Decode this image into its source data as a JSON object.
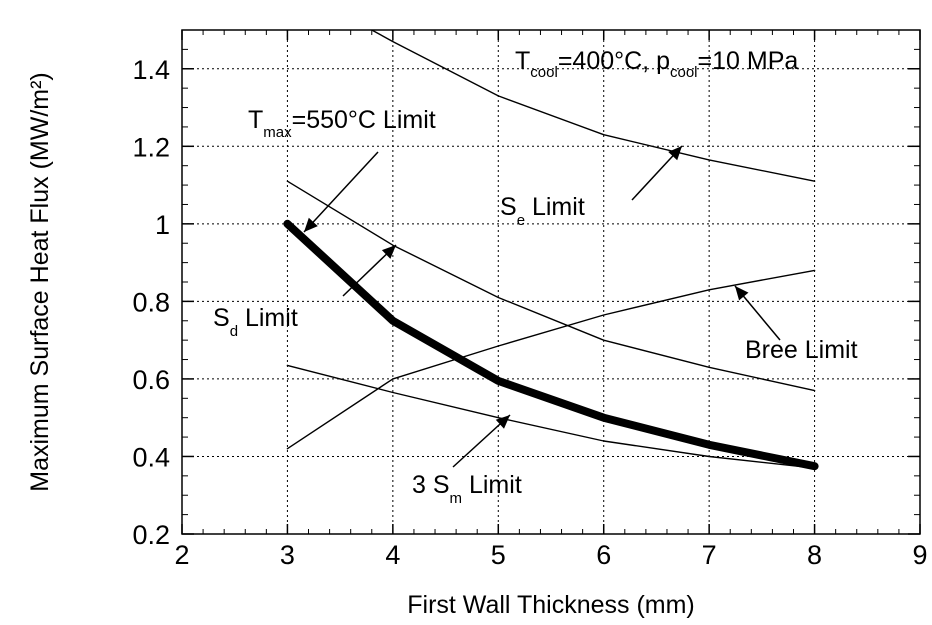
{
  "chart_data": {
    "type": "line",
    "xlabel": "First Wall Thickness (mm)",
    "ylabel": "Maximum Surface Heat Flux (MW/m²)",
    "xlim": [
      2,
      9
    ],
    "ylim": [
      0.2,
      1.5
    ],
    "x_ticks": [
      "2",
      "3",
      "4",
      "5",
      "6",
      "7",
      "8",
      "9"
    ],
    "y_ticks": [
      "0.2",
      "0.4",
      "0.6",
      "0.8",
      "1",
      "1.2",
      "1.4"
    ],
    "grid": true,
    "condition_label": {
      "t_main": "T",
      "t_sub": "cool",
      "t_rest": "=400°C, p",
      "p_sub": "cool",
      "p_rest": "=10 MPa"
    },
    "series": [
      {
        "name": "T max = 550°C Limit",
        "bold": true,
        "x": [
          3,
          4,
          5,
          6,
          7,
          8
        ],
        "y": [
          1.0,
          0.75,
          0.595,
          0.5,
          0.43,
          0.375
        ]
      },
      {
        "name": "S e Limit",
        "x": [
          3.8,
          4,
          5,
          6,
          7,
          8
        ],
        "y": [
          1.5,
          1.47,
          1.33,
          1.23,
          1.165,
          1.11
        ]
      },
      {
        "name": "S d Limit",
        "x": [
          3,
          4,
          5,
          6,
          7,
          8
        ],
        "y": [
          1.11,
          0.945,
          0.81,
          0.7,
          0.63,
          0.57
        ]
      },
      {
        "name": "Bree Limit",
        "x": [
          3,
          4,
          5,
          6,
          7,
          8
        ],
        "y": [
          0.42,
          0.6,
          0.685,
          0.765,
          0.83,
          0.88
        ]
      },
      {
        "name": "3 S m Limit",
        "x": [
          3,
          4,
          5,
          6,
          7,
          8
        ],
        "y": [
          0.635,
          0.565,
          0.5,
          0.44,
          0.4,
          0.37
        ]
      }
    ],
    "annotations": [
      {
        "main": "T",
        "sub": "max",
        "rest": "=550°C Limit"
      },
      {
        "main": "S",
        "sub": "e",
        "rest": " Limit"
      },
      {
        "main": "S",
        "sub": "d",
        "rest": " Limit"
      },
      {
        "main": "",
        "sub": "",
        "rest": "Bree Limit"
      },
      {
        "main": "3 S",
        "sub": "m",
        "rest": " Limit"
      }
    ]
  }
}
